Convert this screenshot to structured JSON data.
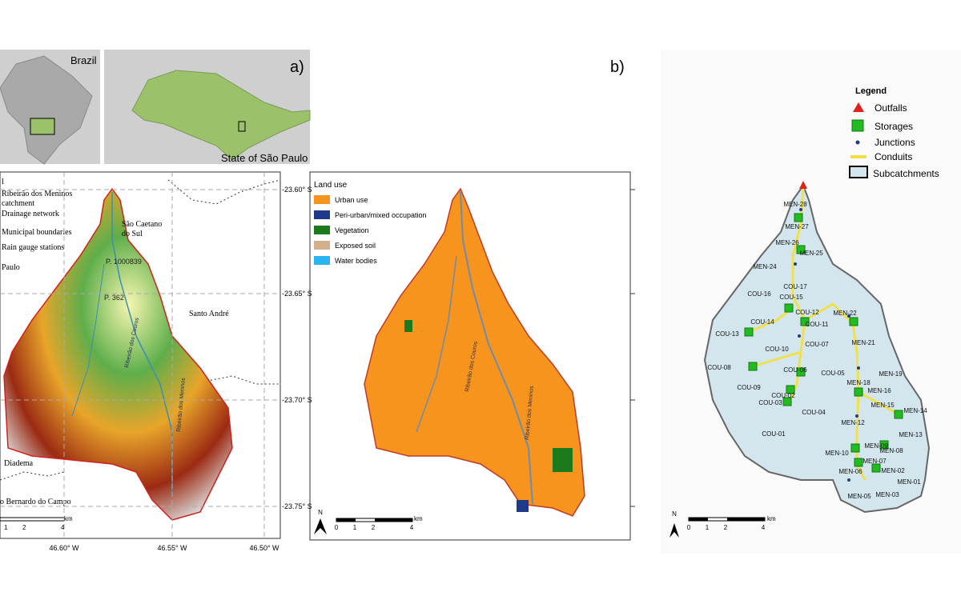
{
  "panel_a": {
    "label": "a)",
    "inset": {
      "country": "Brazil",
      "state": "State of São Paulo"
    },
    "legend": [
      [
        "l"
      ],
      [
        "Ribeirão dos Meninos",
        "catchment"
      ],
      [
        "Drainage network"
      ],
      [
        "Municipal boundaries"
      ],
      [
        "Rain gauge stations"
      ],
      [
        "Paulo"
      ]
    ],
    "places": [
      [
        "São Caetano",
        "do Sul"
      ],
      [
        "Santo André"
      ],
      [
        "Diadema"
      ],
      [
        "o Bernardo do Campo"
      ]
    ],
    "gauges": [
      "P. 1000839",
      "P. 362"
    ],
    "rivers": [
      "Ribeirão dos Couros",
      "Ribeirão dos Meninos"
    ],
    "lat_ticks": [
      "-23.60° S",
      "-23.65° S",
      "-23.70° S",
      "-23.75° S"
    ],
    "lon_ticks": [
      "46.60° W",
      "46.55° W",
      "46.50° W"
    ],
    "scale": {
      "ticks": [
        "1",
        "2",
        "4"
      ],
      "unit": "km"
    }
  },
  "land_use": {
    "title": "Land use",
    "items": [
      {
        "label": "Urban use",
        "color": "#f7941d"
      },
      {
        "label": "Peri-urban/mixed occupation",
        "color": "#1f3a8a"
      },
      {
        "label": "Vegetation",
        "color": "#1b7a1b"
      },
      {
        "label": "Exposed soil",
        "color": "#d2b08c"
      },
      {
        "label": "Water bodies",
        "color": "#2bb5f0"
      }
    ],
    "rivers": [
      "Ribeirão dos Couros",
      "Ribeirão dos Meninos"
    ],
    "scale": {
      "ticks": [
        "0",
        "1",
        "2",
        "4"
      ],
      "unit": "km"
    },
    "north": "N"
  },
  "panel_b": {
    "label": "b)",
    "legend_title": "Legend",
    "legend": [
      "Outfalls",
      "Storages",
      "Junctions",
      "Conduits",
      "Subcatchments"
    ],
    "nodes": [
      "MEN-28",
      "MEN-27",
      "MEN-26",
      "MEN-25",
      "MEN-24",
      "COU-17",
      "COU-16",
      "COU-15",
      "COU-12",
      "COU-13",
      "COU-14",
      "COU-11",
      "MEN-22",
      "MEN-21",
      "COU-10",
      "COU-07",
      "COU-08",
      "COU-06",
      "COU-05",
      "COU-09",
      "MEN-19",
      "MEN-18",
      "MEN-16",
      "COU-02",
      "COU-03",
      "MEN-15",
      "MEN-14",
      "COU-04",
      "MEN-12",
      "MEN-13",
      "COU-01",
      "MEN-09",
      "MEN-08",
      "MEN-10",
      "MEN-07",
      "MEN-06",
      "MEN-02",
      "MEN-01",
      "MEN-05",
      "MEN-03"
    ],
    "scale": {
      "ticks": [
        "0",
        "1",
        "2",
        "4"
      ],
      "unit": "km"
    },
    "north": "N"
  }
}
